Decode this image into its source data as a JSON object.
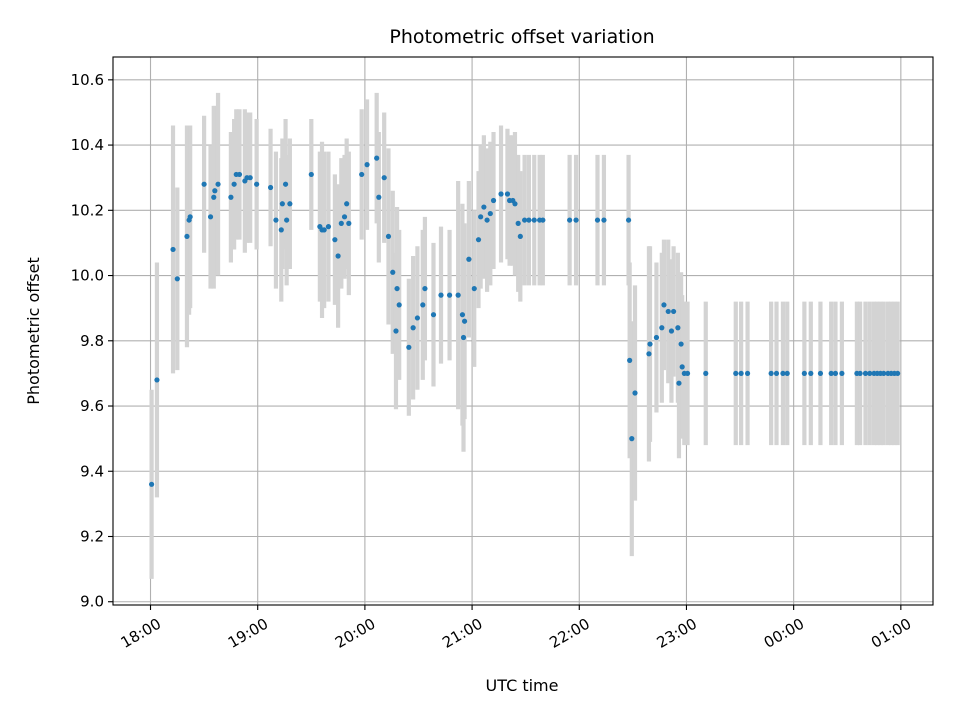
{
  "chart_data": {
    "type": "scatter",
    "title": "Photometric offset variation",
    "xlabel": "UTC time",
    "ylabel": "Photometric offset",
    "xlim_hours": [
      17.65,
      25.3
    ],
    "ylim": [
      8.99,
      10.67
    ],
    "x_ticks": [
      {
        "hour": 18,
        "label": "18:00"
      },
      {
        "hour": 19,
        "label": "19:00"
      },
      {
        "hour": 20,
        "label": "20:00"
      },
      {
        "hour": 21,
        "label": "21:00"
      },
      {
        "hour": 22,
        "label": "22:00"
      },
      {
        "hour": 23,
        "label": "23:00"
      },
      {
        "hour": 24,
        "label": "00:00"
      },
      {
        "hour": 25,
        "label": "01:00"
      }
    ],
    "y_ticks": [
      {
        "value": 9.0,
        "label": "9.0"
      },
      {
        "value": 9.2,
        "label": "9.2"
      },
      {
        "value": 9.4,
        "label": "9.4"
      },
      {
        "value": 9.6,
        "label": "9.6"
      },
      {
        "value": 9.8,
        "label": "9.8"
      },
      {
        "value": 10.0,
        "label": "10.0"
      },
      {
        "value": 10.2,
        "label": "10.2"
      },
      {
        "value": 10.4,
        "label": "10.4"
      },
      {
        "value": 10.6,
        "label": "10.6"
      }
    ],
    "grid": true,
    "colors": {
      "point": "#1f77b4",
      "errorbar": "#d3d3d3",
      "grid": "#b0b0b0"
    },
    "series": [
      {
        "points": [
          [
            18.01,
            9.36,
            0.29
          ],
          [
            18.06,
            9.68,
            0.36
          ],
          [
            18.21,
            10.08,
            0.38
          ],
          [
            18.25,
            9.99,
            0.28
          ],
          [
            18.34,
            10.12,
            0.34
          ],
          [
            18.36,
            10.17,
            0.29
          ],
          [
            18.37,
            10.18,
            0.28
          ],
          [
            18.5,
            10.28,
            0.21
          ],
          [
            18.56,
            10.18,
            0.22
          ],
          [
            18.59,
            10.24,
            0.28
          ],
          [
            18.6,
            10.26,
            0.26
          ],
          [
            18.63,
            10.28,
            0.28
          ],
          [
            18.75,
            10.24,
            0.2
          ],
          [
            18.78,
            10.28,
            0.2
          ],
          [
            18.8,
            10.31,
            0.2
          ],
          [
            18.83,
            10.31,
            0.2
          ],
          [
            18.88,
            10.29,
            0.22
          ],
          [
            18.9,
            10.3,
            0.2
          ],
          [
            18.93,
            10.3,
            0.2
          ],
          [
            18.99,
            10.28,
            0.2
          ],
          [
            19.12,
            10.27,
            0.18
          ],
          [
            19.17,
            10.17,
            0.21
          ],
          [
            19.22,
            10.14,
            0.22
          ],
          [
            19.23,
            10.22,
            0.2
          ],
          [
            19.26,
            10.28,
            0.2
          ],
          [
            19.27,
            10.17,
            0.2
          ],
          [
            19.3,
            10.22,
            0.2
          ],
          [
            19.5,
            10.31,
            0.17
          ],
          [
            19.58,
            10.15,
            0.23
          ],
          [
            19.6,
            10.14,
            0.27
          ],
          [
            19.62,
            10.14,
            0.24
          ],
          [
            19.66,
            10.15,
            0.23
          ],
          [
            19.72,
            10.11,
            0.2
          ],
          [
            19.75,
            10.06,
            0.22
          ],
          [
            19.78,
            10.16,
            0.2
          ],
          [
            19.81,
            10.18,
            0.19
          ],
          [
            19.83,
            10.22,
            0.2
          ],
          [
            19.85,
            10.16,
            0.22
          ],
          [
            19.97,
            10.31,
            0.2
          ],
          [
            20.02,
            10.34,
            0.2
          ],
          [
            20.11,
            10.36,
            0.2
          ],
          [
            20.13,
            10.24,
            0.2
          ],
          [
            20.18,
            10.3,
            0.2
          ],
          [
            20.22,
            10.12,
            0.27
          ],
          [
            20.26,
            10.01,
            0.25
          ],
          [
            20.29,
            9.83,
            0.24
          ],
          [
            20.3,
            9.96,
            0.25
          ],
          [
            20.32,
            9.91,
            0.23
          ],
          [
            20.41,
            9.78,
            0.21
          ],
          [
            20.45,
            9.84,
            0.22
          ],
          [
            20.49,
            9.87,
            0.22
          ],
          [
            20.54,
            9.91,
            0.23
          ],
          [
            20.56,
            9.96,
            0.22
          ],
          [
            20.64,
            9.88,
            0.22
          ],
          [
            20.71,
            9.94,
            0.21
          ],
          [
            20.79,
            9.94,
            0.2
          ],
          [
            20.87,
            9.94,
            0.35
          ],
          [
            20.91,
            9.88,
            0.34
          ],
          [
            20.92,
            9.81,
            0.35
          ],
          [
            20.93,
            9.86,
            0.3
          ],
          [
            20.97,
            10.05,
            0.24
          ],
          [
            21.02,
            9.96,
            0.24
          ],
          [
            21.06,
            10.11,
            0.21
          ],
          [
            21.08,
            10.18,
            0.22
          ],
          [
            21.11,
            10.21,
            0.22
          ],
          [
            21.14,
            10.17,
            0.22
          ],
          [
            21.17,
            10.19,
            0.22
          ],
          [
            21.2,
            10.23,
            0.21
          ],
          [
            21.27,
            10.25,
            0.21
          ],
          [
            21.33,
            10.25,
            0.2
          ],
          [
            21.35,
            10.23,
            0.2
          ],
          [
            21.38,
            10.23,
            0.2
          ],
          [
            21.4,
            10.22,
            0.22
          ],
          [
            21.43,
            10.16,
            0.21
          ],
          [
            21.45,
            10.12,
            0.2
          ],
          [
            21.49,
            10.17,
            0.2
          ],
          [
            21.53,
            10.17,
            0.2
          ],
          [
            21.58,
            10.17,
            0.2
          ],
          [
            21.63,
            10.17,
            0.2
          ],
          [
            21.66,
            10.17,
            0.2
          ],
          [
            21.91,
            10.17,
            0.2
          ],
          [
            21.97,
            10.17,
            0.2
          ],
          [
            22.17,
            10.17,
            0.2
          ],
          [
            22.23,
            10.17,
            0.2
          ],
          [
            22.46,
            10.17,
            0.2
          ],
          [
            22.47,
            9.74,
            0.3
          ],
          [
            22.49,
            9.5,
            0.36
          ],
          [
            22.52,
            9.64,
            0.33
          ],
          [
            22.65,
            9.76,
            0.33
          ],
          [
            22.66,
            9.79,
            0.3
          ],
          [
            22.72,
            9.81,
            0.23
          ],
          [
            22.77,
            9.84,
            0.23
          ],
          [
            22.79,
            9.91,
            0.2
          ],
          [
            22.83,
            9.89,
            0.22
          ],
          [
            22.86,
            9.83,
            0.22
          ],
          [
            22.88,
            9.89,
            0.2
          ],
          [
            22.92,
            9.84,
            0.23
          ],
          [
            22.93,
            9.67,
            0.23
          ],
          [
            22.95,
            9.79,
            0.22
          ],
          [
            22.96,
            9.72,
            0.22
          ],
          [
            22.98,
            9.7,
            0.22
          ],
          [
            23.01,
            9.7,
            0.22
          ],
          [
            23.18,
            9.7,
            0.22
          ],
          [
            23.46,
            9.7,
            0.22
          ],
          [
            23.51,
            9.7,
            0.22
          ],
          [
            23.57,
            9.7,
            0.22
          ],
          [
            23.79,
            9.7,
            0.22
          ],
          [
            23.84,
            9.7,
            0.22
          ],
          [
            23.9,
            9.7,
            0.22
          ],
          [
            23.94,
            9.7,
            0.22
          ],
          [
            24.1,
            9.7,
            0.22
          ],
          [
            24.16,
            9.7,
            0.22
          ],
          [
            24.25,
            9.7,
            0.22
          ],
          [
            24.35,
            9.7,
            0.22
          ],
          [
            24.39,
            9.7,
            0.22
          ],
          [
            24.45,
            9.7,
            0.22
          ],
          [
            24.59,
            9.7,
            0.22
          ],
          [
            24.62,
            9.7,
            0.22
          ],
          [
            24.67,
            9.7,
            0.22
          ],
          [
            24.71,
            9.7,
            0.22
          ],
          [
            24.75,
            9.7,
            0.22
          ],
          [
            24.78,
            9.7,
            0.22
          ],
          [
            24.81,
            9.7,
            0.22
          ],
          [
            24.84,
            9.7,
            0.22
          ],
          [
            24.88,
            9.7,
            0.22
          ],
          [
            24.91,
            9.7,
            0.22
          ],
          [
            24.94,
            9.7,
            0.22
          ],
          [
            24.97,
            9.7,
            0.22
          ]
        ]
      }
    ]
  }
}
